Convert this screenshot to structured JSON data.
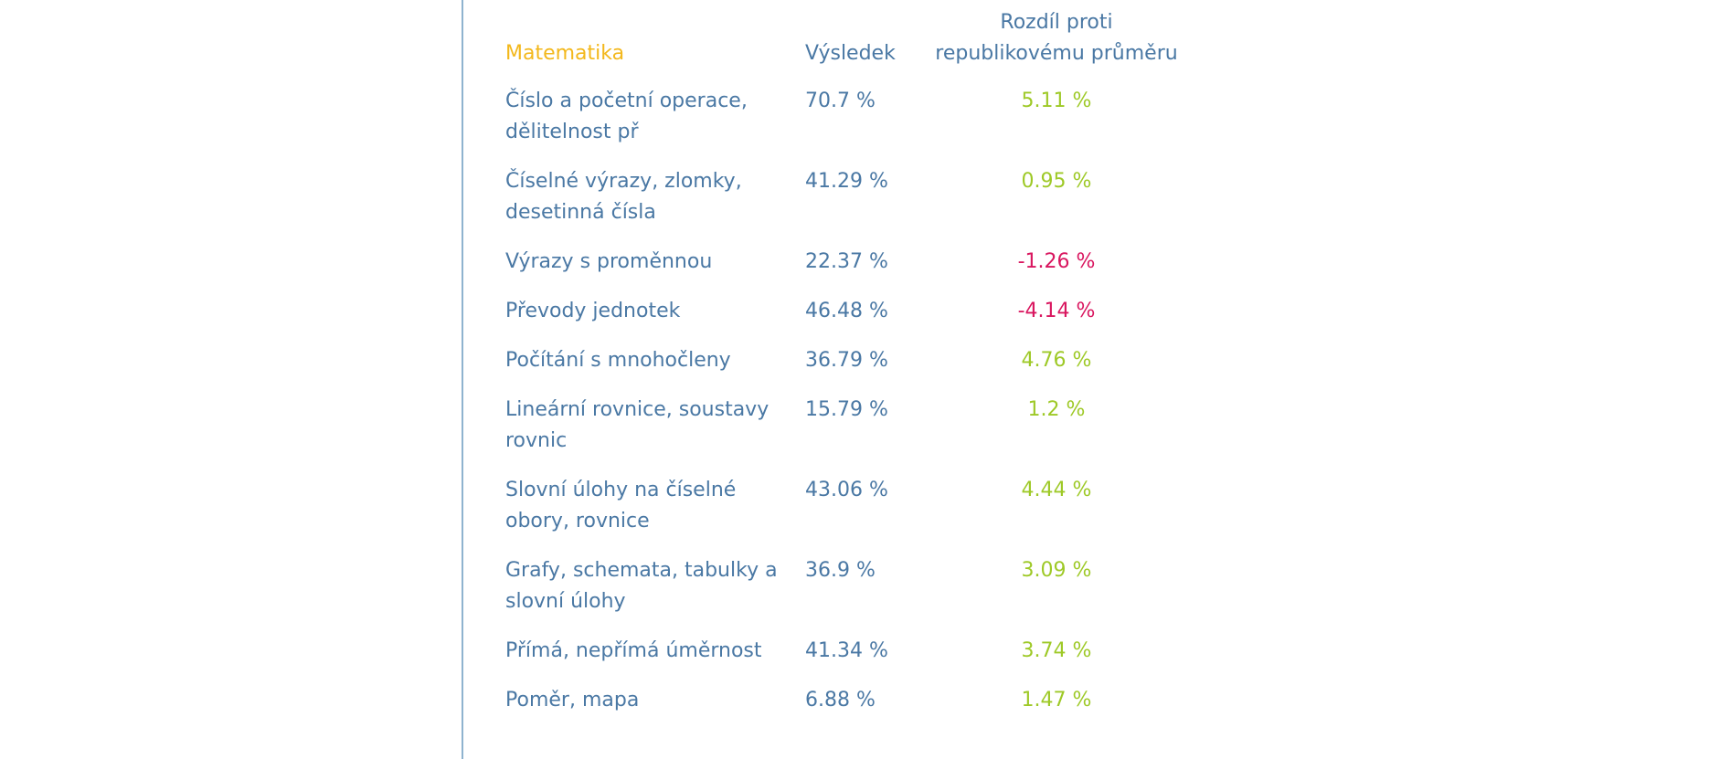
{
  "table": {
    "headers": {
      "topic": "Matematika",
      "result": "Výsledek",
      "difference": "Rozdíl proti republikovému průměru"
    },
    "rows": [
      {
        "topic": "Číslo a početní operace, dělitelnost př",
        "result": "70.7 %",
        "difference": "5.11 %"
      },
      {
        "topic": "Číselné výrazy, zlomky, desetinná čísla",
        "result": "41.29 %",
        "difference": "0.95 %"
      },
      {
        "topic": "Výrazy s proměnnou",
        "result": "22.37 %",
        "difference": "-1.26 %"
      },
      {
        "topic": "Převody jednotek",
        "result": "46.48 %",
        "difference": "-4.14 %"
      },
      {
        "topic": "Počítání s mnohočleny",
        "result": "36.79 %",
        "difference": "4.76 %"
      },
      {
        "topic": "Lineární rovnice, soustavy rovnic",
        "result": "15.79 %",
        "difference": "1.2 %"
      },
      {
        "topic": "Slovní úlohy na číselné obory, rovnice",
        "result": "43.06 %",
        "difference": "4.44 %"
      },
      {
        "topic": "Grafy, schemata, tabulky a slovní úlohy",
        "result": "36.9 %",
        "difference": "3.09 %"
      },
      {
        "topic": "Přímá, nepřímá úměrnost",
        "result": "41.34 %",
        "difference": "3.74 %"
      },
      {
        "topic": "Poměr, mapa",
        "result": "6.88 %",
        "difference": "1.47 %"
      }
    ]
  },
  "colors": {
    "text": "#4a78a4",
    "section_title": "#f3b81c",
    "positive": "#9ec927",
    "negative": "#d9165f",
    "rule": "#8fb3cf"
  }
}
